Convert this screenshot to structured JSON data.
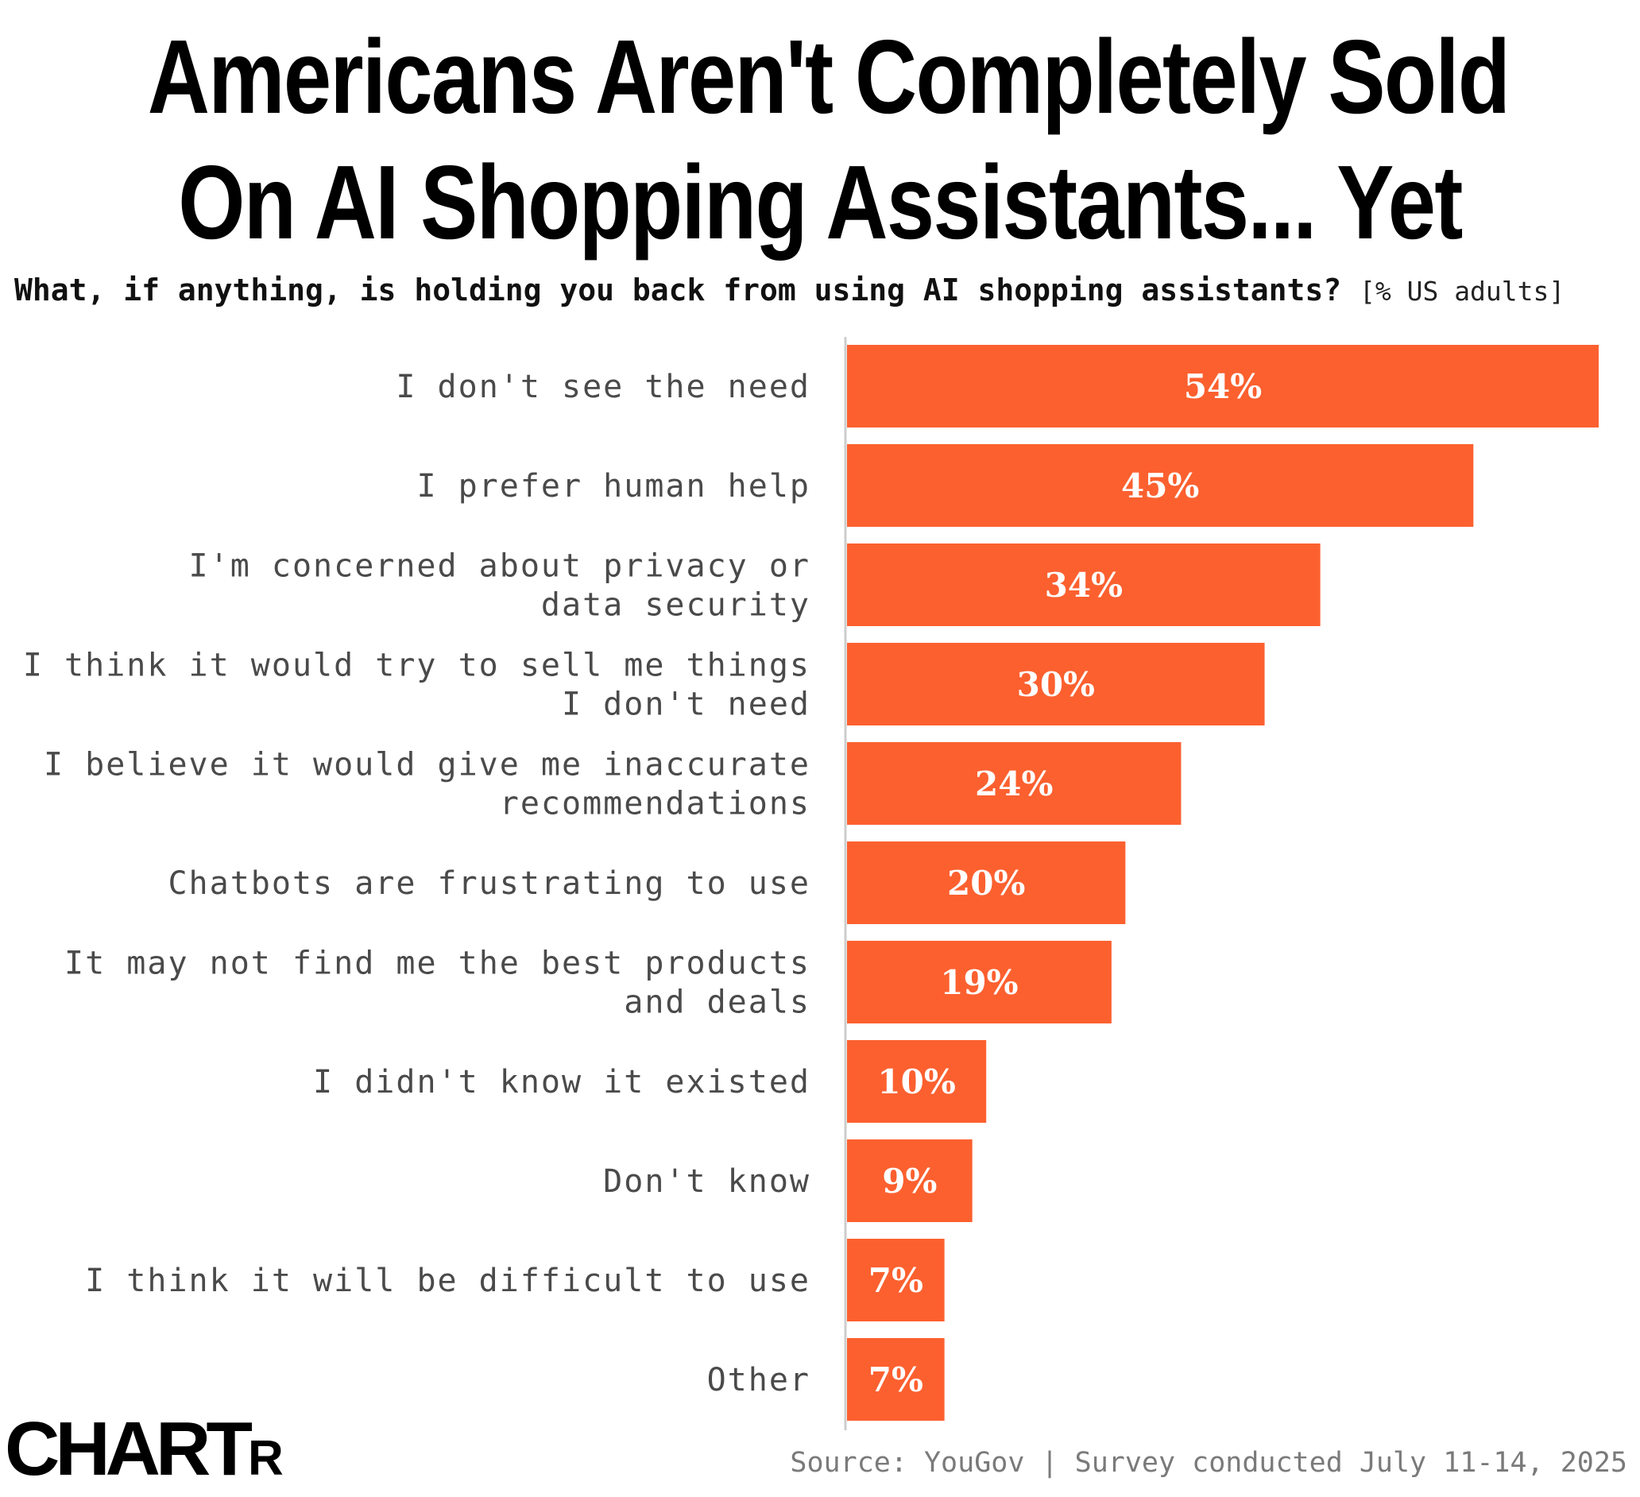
{
  "header": {
    "title_line1": "Americans Aren't Completely Sold",
    "title_line2": "On AI Shopping Assistants... Yet",
    "question": "What, if anything, is holding you back from using AI shopping assistants?",
    "unit": "[% US adults]"
  },
  "chart_data": {
    "type": "bar",
    "orientation": "horizontal",
    "title": "Americans Aren't Completely Sold On AI Shopping Assistants... Yet",
    "subtitle": "What, if anything, is holding you back from using AI shopping assistants? [% US adults]",
    "categories": [
      [
        "I don't see the need"
      ],
      [
        "I prefer human help"
      ],
      [
        "I'm concerned about privacy or",
        "data security"
      ],
      [
        "I think it would try to sell me things",
        "I don't need"
      ],
      [
        "I believe it would give me inaccurate",
        "recommendations"
      ],
      [
        "Chatbots are frustrating to use"
      ],
      [
        "It may not find me the best products",
        "and deals"
      ],
      [
        "I didn't know it existed"
      ],
      [
        "Don't know"
      ],
      [
        "I think it will be difficult to use"
      ],
      [
        "Other"
      ]
    ],
    "values": [
      54,
      45,
      34,
      30,
      24,
      20,
      19,
      10,
      9,
      7,
      7
    ],
    "value_labels": [
      "54%",
      "45%",
      "34%",
      "30%",
      "24%",
      "20%",
      "19%",
      "10%",
      "9%",
      "7%",
      "7%"
    ],
    "xlim": [
      0,
      54
    ],
    "grid": false,
    "legend": "none",
    "bar_color": "#fc602f",
    "axis_color": "#cccccc"
  },
  "footer": {
    "logo_main": "CHART",
    "logo_tail": "R",
    "source": "Source: YouGov | Survey conducted July 11-14, 2025"
  }
}
